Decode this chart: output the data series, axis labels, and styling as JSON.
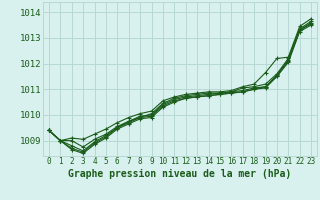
{
  "background_color": "#d8f0ee",
  "grid_color": "#b8d8d4",
  "line_color": "#1a5c1a",
  "xlabel": "Graphe pression niveau de la mer (hPa)",
  "ylim": [
    1008.4,
    1014.4
  ],
  "xlim": [
    -0.5,
    23.5
  ],
  "yticks": [
    1009,
    1010,
    1011,
    1012,
    1013,
    1014
  ],
  "xticks": [
    0,
    1,
    2,
    3,
    4,
    5,
    6,
    7,
    8,
    9,
    10,
    11,
    12,
    13,
    14,
    15,
    16,
    17,
    18,
    19,
    20,
    21,
    22,
    23
  ],
  "series": [
    [
      1009.4,
      1009.0,
      1009.0,
      1008.75,
      1009.05,
      1009.25,
      1009.55,
      1009.75,
      1009.9,
      1010.05,
      1010.45,
      1010.65,
      1010.75,
      1010.8,
      1010.85,
      1010.85,
      1010.9,
      1011.05,
      1011.1,
      1011.2,
      1011.6,
      1012.2,
      1013.35,
      1013.65
    ],
    [
      1009.4,
      1009.0,
      1008.8,
      1008.6,
      1008.95,
      1009.2,
      1009.5,
      1009.75,
      1009.95,
      1010.0,
      1010.4,
      1010.6,
      1010.7,
      1010.75,
      1010.8,
      1010.85,
      1010.9,
      1010.95,
      1011.05,
      1011.1,
      1011.55,
      1012.15,
      1013.3,
      1013.6
    ],
    [
      1009.4,
      1009.0,
      1008.7,
      1008.55,
      1008.9,
      1009.15,
      1009.5,
      1009.7,
      1009.9,
      1009.95,
      1010.35,
      1010.55,
      1010.65,
      1010.7,
      1010.75,
      1010.8,
      1010.85,
      1010.9,
      1011.0,
      1011.1,
      1011.5,
      1012.1,
      1013.3,
      1013.55
    ],
    [
      1009.4,
      1009.0,
      1008.65,
      1008.5,
      1008.85,
      1009.1,
      1009.45,
      1009.65,
      1009.85,
      1009.9,
      1010.3,
      1010.5,
      1010.65,
      1010.7,
      1010.75,
      1010.8,
      1010.85,
      1010.9,
      1011.0,
      1011.05,
      1011.5,
      1012.05,
      1013.25,
      1013.5
    ],
    [
      1009.4,
      1009.0,
      1009.1,
      1009.05,
      1009.25,
      1009.45,
      1009.7,
      1009.9,
      1010.05,
      1010.15,
      1010.55,
      1010.7,
      1010.8,
      1010.85,
      1010.9,
      1010.9,
      1010.95,
      1011.1,
      1011.2,
      1011.65,
      1012.2,
      1012.25,
      1013.45,
      1013.75
    ]
  ]
}
